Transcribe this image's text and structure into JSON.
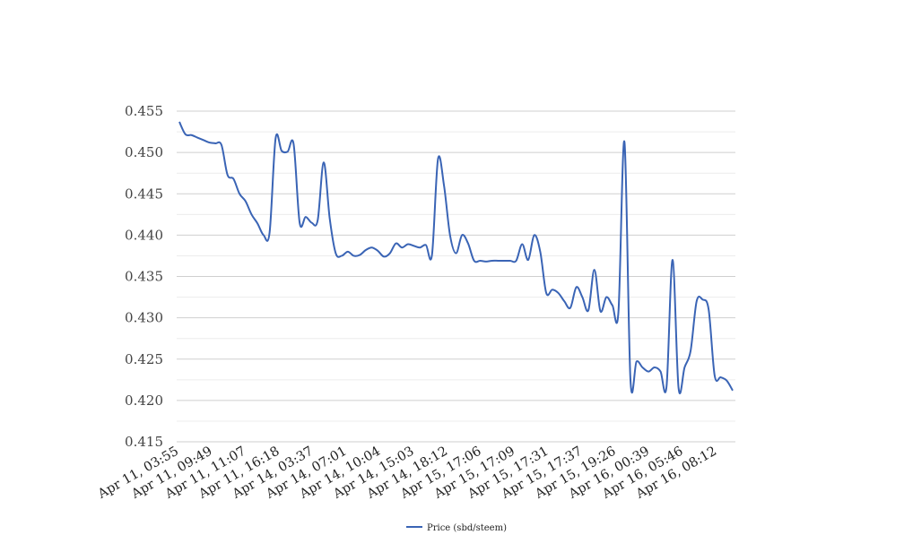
{
  "chart_data": {
    "type": "line",
    "title": "",
    "xlabel": "",
    "ylabel": "",
    "ylim": [
      0.415,
      0.455
    ],
    "yticks": [
      "0.455",
      "0.450",
      "0.445",
      "0.440",
      "0.435",
      "0.430",
      "0.425",
      "0.420",
      "0.415"
    ],
    "grid": true,
    "legend_position": "bottom",
    "x_tick_labels": [
      "Apr 11, 03:55",
      "Apr 11, 09:49",
      "Apr 11, 11:07",
      "Apr 11, 16:18",
      "Apr 14, 03:37",
      "Apr 14, 07:01",
      "Apr 14, 10:04",
      "Apr 14, 15:03",
      "Apr 14, 18:12",
      "Apr 15, 17:06",
      "Apr 15, 17:09",
      "Apr 15, 17:31",
      "Apr 15, 17:37",
      "Apr 15, 19:26",
      "Apr 16, 00:39",
      "Apr 16, 05:46",
      "Apr 16, 08:12"
    ],
    "series": [
      {
        "name": "Price (sbd/steem)",
        "color": "#3a64b5",
        "values": [
          0.4537,
          0.4522,
          0.4521,
          0.4518,
          0.4515,
          0.4512,
          0.4511,
          0.4509,
          0.4473,
          0.4468,
          0.445,
          0.4441,
          0.4425,
          0.4414,
          0.44,
          0.4403,
          0.4517,
          0.4502,
          0.4501,
          0.451,
          0.4415,
          0.4422,
          0.4415,
          0.4418,
          0.4488,
          0.442,
          0.4378,
          0.4375,
          0.438,
          0.4375,
          0.4376,
          0.4382,
          0.4385,
          0.4381,
          0.4374,
          0.4378,
          0.439,
          0.4385,
          0.4389,
          0.4387,
          0.4385,
          0.4388,
          0.4376,
          0.4492,
          0.446,
          0.44,
          0.4378,
          0.44,
          0.439,
          0.4369,
          0.4369,
          0.4368,
          0.4369,
          0.4369,
          0.4369,
          0.4369,
          0.4369,
          0.4389,
          0.437,
          0.44,
          0.438,
          0.433,
          0.4334,
          0.433,
          0.432,
          0.4312,
          0.4337,
          0.4325,
          0.4309,
          0.4358,
          0.4308,
          0.4325,
          0.4315,
          0.4307,
          0.4513,
          0.4225,
          0.4247,
          0.424,
          0.4235,
          0.424,
          0.4235,
          0.4217,
          0.437,
          0.4215,
          0.424,
          0.426,
          0.432,
          0.4322,
          0.431,
          0.423,
          0.4228,
          0.4224,
          0.4212
        ]
      }
    ]
  }
}
